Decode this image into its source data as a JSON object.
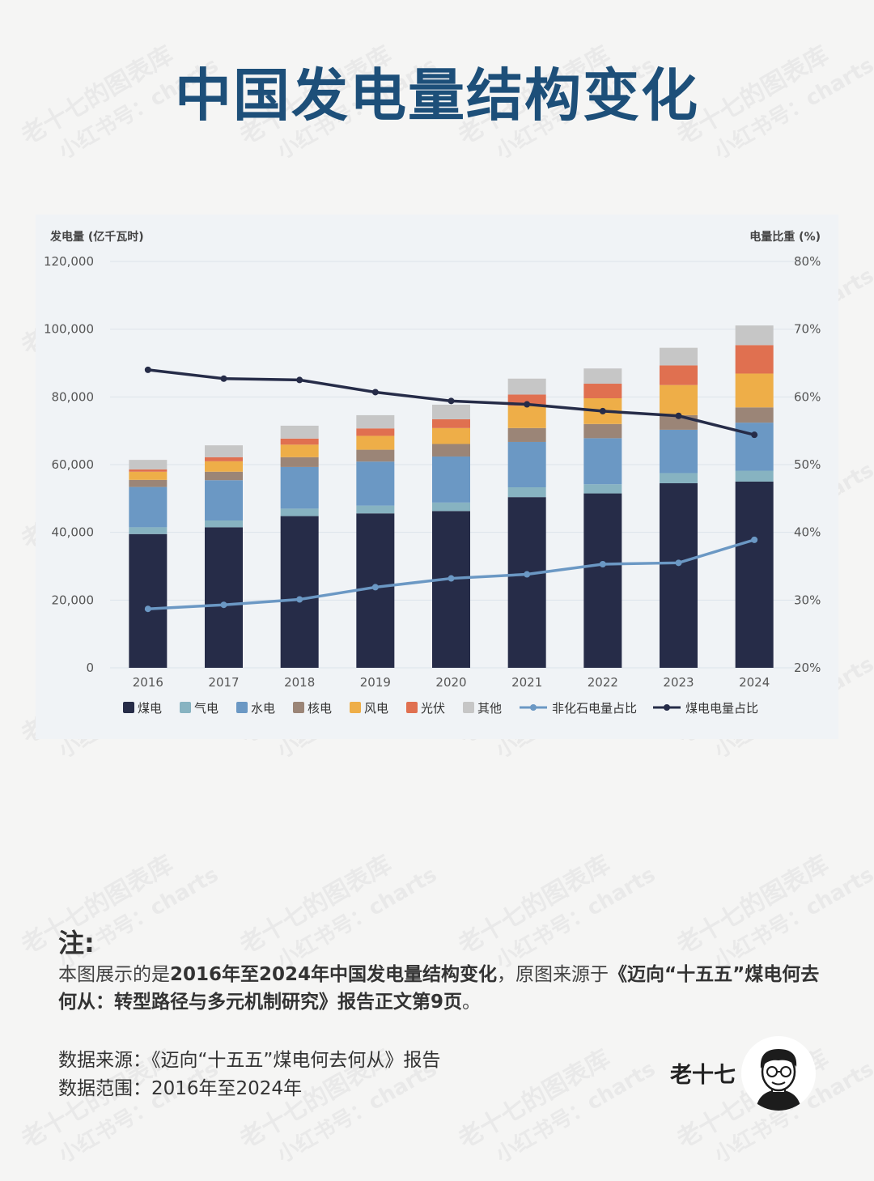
{
  "title": "中国发电量结构变化",
  "chart_data": {
    "type": "bar",
    "stacked": true,
    "categories": [
      "2016",
      "2017",
      "2018",
      "2019",
      "2020",
      "2021",
      "2022",
      "2023",
      "2024"
    ],
    "series": [
      {
        "name": "煤电",
        "color": "#262c48",
        "values": [
          39500,
          41500,
          44800,
          45600,
          46300,
          50400,
          51500,
          54500,
          55000
        ]
      },
      {
        "name": "气电",
        "color": "#87b3c1",
        "values": [
          2000,
          2000,
          2200,
          2300,
          2500,
          2900,
          2700,
          3000,
          3200
        ]
      },
      {
        "name": "水电",
        "color": "#6b98c4",
        "values": [
          11900,
          11900,
          12300,
          13000,
          13600,
          13400,
          13600,
          12800,
          14200
        ]
      },
      {
        "name": "核电",
        "color": "#9b8577",
        "values": [
          2100,
          2500,
          2900,
          3500,
          3700,
          4100,
          4200,
          4300,
          4500
        ]
      },
      {
        "name": "风电",
        "color": "#eeae48",
        "values": [
          2400,
          3100,
          3700,
          4100,
          4700,
          6600,
          7600,
          8900,
          10000
        ]
      },
      {
        "name": "光伏",
        "color": "#e07050",
        "values": [
          700,
          1200,
          1800,
          2200,
          2600,
          3300,
          4300,
          5800,
          8400
        ]
      },
      {
        "name": "其他",
        "color": "#c6c6c6",
        "values": [
          2800,
          3500,
          3800,
          3900,
          4300,
          4700,
          4500,
          5200,
          5800
        ]
      }
    ],
    "lines": [
      {
        "name": "非化石电量占比",
        "color": "#6b98c4",
        "values": [
          28.7,
          29.3,
          30.1,
          31.9,
          33.2,
          33.8,
          35.3,
          35.5,
          38.9
        ]
      },
      {
        "name": "煤电电量占比",
        "color": "#262c48",
        "values": [
          64.0,
          62.7,
          62.5,
          60.7,
          59.4,
          58.9,
          57.9,
          57.2,
          54.4
        ]
      }
    ],
    "ylabel_left": "发电量 (亿千瓦时)",
    "ylabel_right": "电量比重 (%)",
    "ylim_left": [
      0,
      120000
    ],
    "ylim_right": [
      20,
      80
    ],
    "left_ticks": [
      "0",
      "20,000",
      "40,000",
      "60,000",
      "80,000",
      "100,000",
      "120,000"
    ],
    "right_ticks": [
      "20%",
      "30%",
      "40%",
      "50%",
      "60%",
      "70%",
      "80%"
    ],
    "grid": true,
    "legend_position": "bottom"
  },
  "note": {
    "heading": "注:",
    "prefix": "本图展示的是",
    "bold1": "2016年至2024年中国发电量结构变化",
    "middle": "，原图来源于",
    "bold2": "《迈向“十五五”煤电何去何从：转型路径与多元机制研究》报告正文第9页",
    "suffix": "。"
  },
  "source_line": "数据来源：《迈向“十五五”煤电何去何从》报告",
  "range_line": "数据范围：2016年至2024年",
  "author": "老十七",
  "watermark": {
    "line1": "老十七的图表库",
    "line2": "小红书号：charts"
  }
}
